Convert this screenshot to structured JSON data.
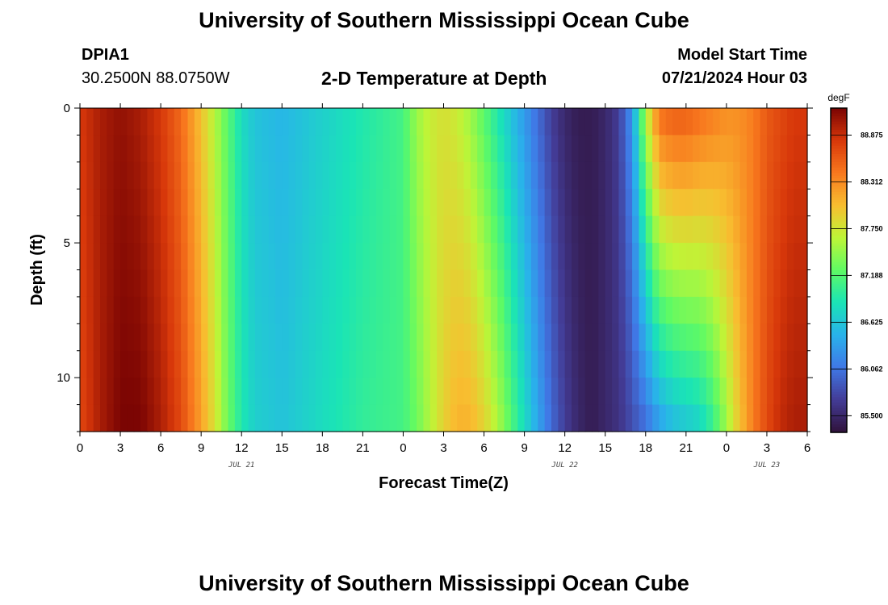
{
  "header": {
    "title": "University of Southern Mississippi Ocean Cube",
    "station": "DPIA1",
    "coords": "30.2500N  88.0750W",
    "subtitle": "2-D Temperature at Depth",
    "model_label": "Model Start Time",
    "model_time": "07/21/2024 Hour 03"
  },
  "footer": {
    "title": "University of Southern Mississippi Ocean Cube"
  },
  "chart_data": {
    "type": "heatmap",
    "title": "2-D Temperature at Depth",
    "xlabel": "Forecast Time(Z)",
    "ylabel": "Depth (ft)",
    "x_hours": [
      0,
      54
    ],
    "y_range": [
      0,
      12
    ],
    "x_tick_labels": [
      "0",
      "3",
      "6",
      "9",
      "12",
      "15",
      "18",
      "21",
      "0",
      "3",
      "6",
      "9",
      "12",
      "15",
      "18",
      "21",
      "0",
      "3",
      "6"
    ],
    "y_tick_labels": [
      "0",
      "5",
      "10"
    ],
    "date_labels": [
      {
        "label": "JUL 21",
        "hour": 12
      },
      {
        "label": "JUL 22",
        "hour": 36
      },
      {
        "label": "JUL 23",
        "hour": 51
      }
    ],
    "colorbar": {
      "unit": "degF",
      "ticks": [
        "88.875",
        "88.312",
        "87.750",
        "87.188",
        "86.625",
        "86.062",
        "85.500"
      ],
      "range": [
        85.3,
        89.2
      ]
    },
    "time_profile_hours": [
      0,
      1.5,
      3,
      4.5,
      6,
      7.5,
      9,
      10,
      11,
      12,
      13,
      15,
      18,
      21,
      24,
      25,
      26,
      27,
      28,
      29,
      30,
      31,
      32,
      33,
      34,
      35,
      36,
      37,
      38,
      39,
      40,
      41,
      42,
      43,
      44,
      45,
      46,
      47,
      48,
      49,
      50,
      51,
      52,
      53,
      54
    ],
    "surface_temp_degF": [
      88.8,
      89.0,
      89.1,
      89.0,
      88.8,
      88.5,
      88.0,
      87.6,
      87.2,
      86.8,
      86.6,
      86.5,
      86.7,
      86.9,
      87.1,
      87.5,
      87.7,
      87.8,
      87.7,
      87.5,
      87.2,
      86.9,
      86.6,
      86.3,
      86.0,
      85.7,
      85.5,
      85.4,
      85.4,
      85.5,
      85.7,
      86.3,
      87.6,
      88.5,
      88.6,
      88.6,
      88.5,
      88.4,
      88.3,
      88.3,
      88.4,
      88.6,
      88.7,
      88.8,
      88.8
    ],
    "bottom_temp_degF": [
      88.7,
      89.0,
      89.2,
      89.2,
      89.0,
      88.7,
      88.2,
      87.8,
      87.3,
      86.9,
      86.7,
      86.6,
      86.8,
      87.0,
      87.1,
      87.3,
      87.6,
      87.9,
      88.1,
      88.1,
      87.9,
      87.6,
      87.2,
      86.8,
      86.4,
      86.0,
      85.7,
      85.5,
      85.4,
      85.5,
      85.6,
      85.8,
      86.0,
      86.3,
      86.5,
      86.6,
      86.7,
      87.0,
      87.5,
      88.0,
      88.4,
      88.7,
      88.9,
      89.0,
      89.0
    ]
  }
}
